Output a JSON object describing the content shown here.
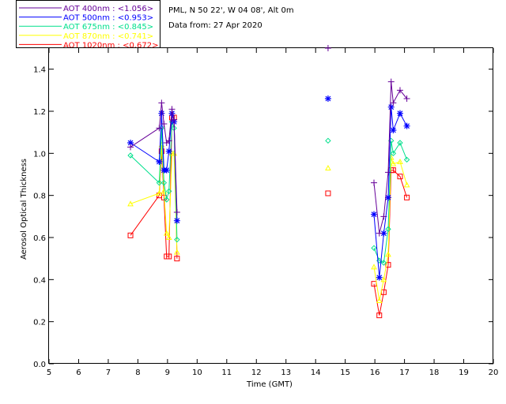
{
  "header": {
    "station": "PML, N 50 22', W 04 08', Alt 0m",
    "date": "Data from: 27 Apr 2020"
  },
  "legend": [
    {
      "label": "AOT  400nm : <1.056>",
      "color": "#660099"
    },
    {
      "label": "AOT  500nm : <0.953>",
      "color": "#0000ff"
    },
    {
      "label": "AOT  675nm : <0.845>",
      "color": "#00e08c"
    },
    {
      "label": "AOT  870nm : <0.741>",
      "color": "#ffff00"
    },
    {
      "label": "AOT 1020nm : <0.672>",
      "color": "#ff0000"
    }
  ],
  "chart_data": {
    "type": "line",
    "title": "",
    "xlabel": "Time (GMT)",
    "ylabel": "Aerosol Optical Thickness",
    "xlim": [
      5,
      20
    ],
    "ylim": [
      0.0,
      1.5
    ],
    "xticks": [
      "5",
      "6",
      "7",
      "8",
      "9",
      "10",
      "11",
      "12",
      "13",
      "14",
      "15",
      "16",
      "17",
      "18",
      "19",
      "20"
    ],
    "yticks": [
      "0.0",
      "0.2",
      "0.4",
      "0.6",
      "0.8",
      "1.0",
      "1.2",
      "1.4"
    ],
    "series": [
      {
        "name": "AOT 400nm",
        "color": "#660099",
        "marker": "plus",
        "x": [
          7.75,
          8.72,
          8.8,
          8.88,
          8.97,
          9.05,
          9.15,
          9.22,
          9.32,
          14.42,
          15.97,
          16.15,
          16.3,
          16.45,
          16.55,
          16.62,
          16.85,
          17.08
        ],
        "y": [
          1.03,
          1.12,
          1.24,
          1.14,
          1.05,
          1.06,
          1.21,
          1.16,
          0.72,
          1.5,
          0.86,
          0.62,
          0.7,
          0.91,
          1.34,
          1.24,
          1.3,
          1.26
        ]
      },
      {
        "name": "AOT 500nm",
        "color": "#0000ff",
        "marker": "asterisk",
        "x": [
          7.75,
          8.72,
          8.8,
          8.88,
          8.97,
          9.05,
          9.15,
          9.22,
          9.32,
          14.42,
          15.97,
          16.15,
          16.3,
          16.45,
          16.55,
          16.62,
          16.85,
          17.08
        ],
        "y": [
          1.05,
          0.96,
          1.19,
          0.92,
          0.92,
          1.01,
          1.19,
          1.15,
          0.68,
          1.26,
          0.71,
          0.41,
          0.62,
          0.79,
          1.22,
          1.11,
          1.19,
          1.13
        ]
      },
      {
        "name": "AOT 675nm",
        "color": "#00e08c",
        "marker": "diamond",
        "x": [
          7.75,
          8.72,
          8.8,
          8.88,
          8.97,
          9.05,
          9.15,
          9.22,
          9.32,
          14.42,
          15.97,
          16.15,
          16.3,
          16.45,
          16.55,
          16.62,
          16.85,
          17.08
        ],
        "y": [
          0.99,
          0.86,
          1.12,
          0.86,
          0.78,
          0.82,
          1.15,
          1.12,
          0.59,
          1.06,
          0.55,
          0.49,
          0.48,
          0.64,
          1.06,
          1.0,
          1.05,
          0.97
        ]
      },
      {
        "name": "AOT 870nm",
        "color": "#ffff00",
        "marker": "triangle",
        "x": [
          7.75,
          8.72,
          8.8,
          8.88,
          8.97,
          9.05,
          9.15,
          9.22,
          9.32,
          14.42,
          15.97,
          16.15,
          16.3,
          16.45,
          16.55,
          16.62,
          16.85,
          17.08
        ],
        "y": [
          0.76,
          0.81,
          1.04,
          0.82,
          0.62,
          0.6,
          1.0,
          1.0,
          0.53,
          0.93,
          0.46,
          0.3,
          0.4,
          0.52,
          0.98,
          0.95,
          0.96,
          0.85
        ]
      },
      {
        "name": "AOT 1020nm",
        "color": "#ff0000",
        "marker": "square",
        "x": [
          7.75,
          8.72,
          8.8,
          8.88,
          8.97,
          9.05,
          9.15,
          9.22,
          9.32,
          14.42,
          15.97,
          16.15,
          16.3,
          16.45,
          16.55,
          16.62,
          16.85,
          17.08
        ],
        "y": [
          0.61,
          0.8,
          1.01,
          0.79,
          0.51,
          0.51,
          1.17,
          1.17,
          0.5,
          0.81,
          0.38,
          0.23,
          0.34,
          0.47,
          0.92,
          0.92,
          0.89,
          0.79
        ]
      }
    ]
  }
}
